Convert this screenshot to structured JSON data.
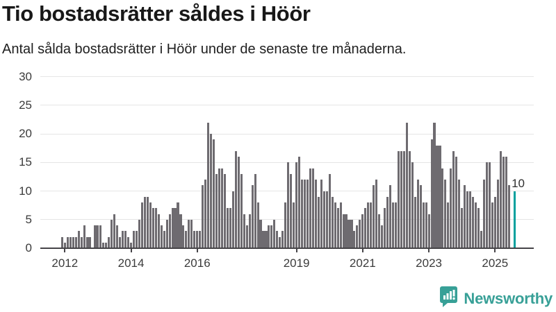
{
  "header": {
    "title": "Tio bostadsrätter såldes i Höör",
    "subtitle": "Antal sålda bostadsrätter i Höör under de senaste tre månaderna."
  },
  "brand": {
    "name": "Newsworthy",
    "color": "#38a097",
    "icon": "bar-chart-speech-bubble"
  },
  "colors": {
    "bar": "#6e6b70",
    "highlight": "#00a09e",
    "gridline": "#e5e5e5",
    "axis": "#454347",
    "label": "#3b3b3b"
  },
  "chart_data": {
    "type": "bar",
    "title": "Tio bostadsrätter såldes i Höör",
    "subtitle": "Antal sålda bostadsrätter i Höör under de senaste tre månaderna.",
    "ylabel": "",
    "xlabel": "",
    "ylim": [
      0,
      30
    ],
    "yticks": [
      0,
      5,
      10,
      15,
      20,
      25,
      30
    ],
    "grid": true,
    "unit": "sålda bostadsrätter per månad",
    "series_start": "2011-04",
    "series_end": "2025-08",
    "years": [
      {
        "year": 2011,
        "start_month": 4,
        "values": [
          0,
          0,
          0,
          0,
          0,
          0,
          0,
          0,
          2
        ]
      },
      {
        "year": 2012,
        "values": [
          1,
          2,
          2,
          2,
          2,
          3,
          2,
          4,
          2,
          2,
          0,
          4
        ]
      },
      {
        "year": 2013,
        "values": [
          4,
          4,
          1,
          1,
          2,
          5,
          6,
          4,
          2,
          3,
          3,
          2
        ]
      },
      {
        "year": 2014,
        "values": [
          1,
          3,
          3,
          5,
          8,
          9,
          9,
          8,
          7,
          7,
          6,
          4
        ]
      },
      {
        "year": 2015,
        "values": [
          3,
          5,
          6,
          7,
          7,
          8,
          6,
          4,
          3,
          5,
          5,
          3
        ]
      },
      {
        "year": 2016,
        "values": [
          3,
          3,
          11,
          12,
          22,
          20,
          19,
          13,
          14,
          14,
          13,
          7
        ]
      },
      {
        "year": 2017,
        "values": [
          7,
          10,
          17,
          16,
          13,
          6,
          4,
          6,
          11,
          13,
          8,
          5
        ]
      },
      {
        "year": 2018,
        "values": [
          3,
          3,
          4,
          4,
          5,
          3,
          2,
          3,
          8,
          15,
          13,
          8
        ]
      },
      {
        "year": 2019,
        "values": [
          15,
          16,
          12,
          12,
          12,
          14,
          14,
          12,
          9,
          12,
          10,
          10
        ]
      },
      {
        "year": 2020,
        "values": [
          13,
          9,
          8,
          7,
          8,
          6,
          6,
          5,
          5,
          3,
          4,
          5
        ]
      },
      {
        "year": 2021,
        "values": [
          6,
          7,
          8,
          8,
          11,
          12,
          6,
          4,
          7,
          9,
          11,
          8
        ]
      },
      {
        "year": 2022,
        "values": [
          8,
          17,
          17,
          17,
          22,
          17,
          15,
          9,
          12,
          11,
          8,
          8
        ]
      },
      {
        "year": 2023,
        "values": [
          6,
          19,
          22,
          18,
          18,
          14,
          12,
          8,
          14,
          17,
          16,
          12
        ]
      },
      {
        "year": 2024,
        "values": [
          7,
          11,
          10,
          10,
          9,
          8,
          7,
          3,
          12,
          15,
          15,
          8
        ]
      },
      {
        "year": 2025,
        "values": [
          9,
          12,
          17,
          16,
          16,
          11,
          0,
          10
        ]
      }
    ],
    "xticks": [
      {
        "label": "2012",
        "index": 9
      },
      {
        "label": "2014",
        "index": 33
      },
      {
        "label": "2016",
        "index": 57
      },
      {
        "label": "2019",
        "index": 93
      },
      {
        "label": "2021",
        "index": 117
      },
      {
        "label": "2023",
        "index": 141
      },
      {
        "label": "2025",
        "index": 165
      }
    ],
    "highlight": {
      "position": "last",
      "value": 10,
      "label": "10",
      "color": "#00a09e"
    },
    "legend": null
  }
}
